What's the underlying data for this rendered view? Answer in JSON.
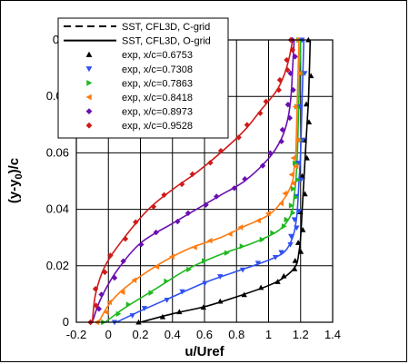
{
  "chart_data": {
    "type": "line",
    "xlabel": "u/Uref",
    "ylabel_parts": [
      "(y-y",
      "0",
      ")/c"
    ],
    "xlim": [
      -0.2,
      1.4
    ],
    "ylim": [
      0,
      0.1
    ],
    "xticks": [
      "-0.2",
      "0",
      "0.2",
      "0.4",
      "0.6",
      "0.8",
      "1",
      "1.2",
      "1.4"
    ],
    "yticks": [
      "0",
      "0.02",
      "0.04",
      "0.06",
      "0.08",
      "0.1"
    ],
    "grid": true,
    "legend_position": "top-left",
    "series": [
      {
        "name": "SST, CFL3D, C-grid",
        "kind": "line",
        "style": "dashed",
        "color": "#000000",
        "x": [],
        "y": []
      },
      {
        "name": "SST, CFL3D, O-grid",
        "kind": "line",
        "style": "solid",
        "color": "#000000",
        "x": [],
        "y": []
      },
      {
        "name": "exp, x/c=0.6753",
        "kind": "markers",
        "marker": "triangle-up",
        "color": "#000000"
      },
      {
        "name": "exp, x/c=0.7308",
        "kind": "markers",
        "marker": "triangle-down",
        "color": "#3050f0"
      },
      {
        "name": "exp, x/c=0.7863",
        "kind": "markers",
        "marker": "triangle-right",
        "color": "#1fb81f"
      },
      {
        "name": "exp, x/c=0.8418",
        "kind": "markers",
        "marker": "triangle-left",
        "color": "#ff7a10"
      },
      {
        "name": "exp, x/c=0.8973",
        "kind": "markers",
        "marker": "diamond",
        "color": "#6a0fb0"
      },
      {
        "name": "exp, x/c=0.9528",
        "kind": "markers",
        "marker": "diamond",
        "color": "#d01a1a"
      }
    ],
    "profiles": [
      {
        "color": "#000000",
        "marker": "triangle-up",
        "x": [
          0.2,
          0.4,
          0.6,
          0.8,
          1.0,
          1.1,
          1.17,
          1.19,
          1.2,
          1.21,
          1.22,
          1.23,
          1.24,
          1.25,
          1.26
        ],
        "y": [
          0.0,
          0.003,
          0.0055,
          0.009,
          0.013,
          0.016,
          0.02,
          0.025,
          0.03,
          0.04,
          0.05,
          0.06,
          0.07,
          0.08,
          0.1
        ]
      },
      {
        "color": "#3050f0",
        "marker": "triangle-down",
        "x": [
          0.05,
          0.2,
          0.4,
          0.6,
          0.8,
          1.0,
          1.1,
          1.15,
          1.17,
          1.18,
          1.19,
          1.2,
          1.21,
          1.22
        ],
        "y": [
          0.0,
          0.004,
          0.009,
          0.014,
          0.018,
          0.022,
          0.025,
          0.03,
          0.035,
          0.04,
          0.05,
          0.06,
          0.08,
          0.1
        ]
      },
      {
        "color": "#1fb81f",
        "marker": "triangle-right",
        "x": [
          -0.02,
          0.1,
          0.3,
          0.5,
          0.7,
          0.9,
          1.05,
          1.12,
          1.15,
          1.16,
          1.17,
          1.18,
          1.19,
          1.2
        ],
        "y": [
          0.0,
          0.005,
          0.012,
          0.019,
          0.024,
          0.028,
          0.032,
          0.036,
          0.04,
          0.045,
          0.05,
          0.06,
          0.08,
          0.1
        ]
      },
      {
        "color": "#ff7a10",
        "marker": "triangle-left",
        "x": [
          -0.06,
          0.0,
          0.1,
          0.3,
          0.5,
          0.7,
          0.85,
          1.0,
          1.1,
          1.15,
          1.16,
          1.17,
          1.18,
          1.19
        ],
        "y": [
          0.0,
          0.006,
          0.012,
          0.02,
          0.026,
          0.03,
          0.034,
          0.038,
          0.044,
          0.05,
          0.055,
          0.06,
          0.08,
          0.1
        ]
      },
      {
        "color": "#6a0fb0",
        "marker": "diamond",
        "x": [
          -0.1,
          -0.05,
          0.05,
          0.2,
          0.4,
          0.55,
          0.7,
          0.85,
          1.0,
          1.08,
          1.12,
          1.14,
          1.15,
          1.16
        ],
        "y": [
          0.0,
          0.008,
          0.018,
          0.028,
          0.035,
          0.04,
          0.045,
          0.05,
          0.058,
          0.065,
          0.072,
          0.08,
          0.09,
          0.1
        ]
      },
      {
        "color": "#d01a1a",
        "marker": "diamond",
        "x": [
          -0.1,
          -0.08,
          -0.02,
          0.1,
          0.25,
          0.4,
          0.55,
          0.7,
          0.85,
          0.95,
          1.05,
          1.1,
          1.13,
          1.15
        ],
        "y": [
          0.0,
          0.01,
          0.02,
          0.03,
          0.04,
          0.047,
          0.053,
          0.06,
          0.068,
          0.075,
          0.082,
          0.088,
          0.094,
          0.1
        ]
      }
    ]
  }
}
